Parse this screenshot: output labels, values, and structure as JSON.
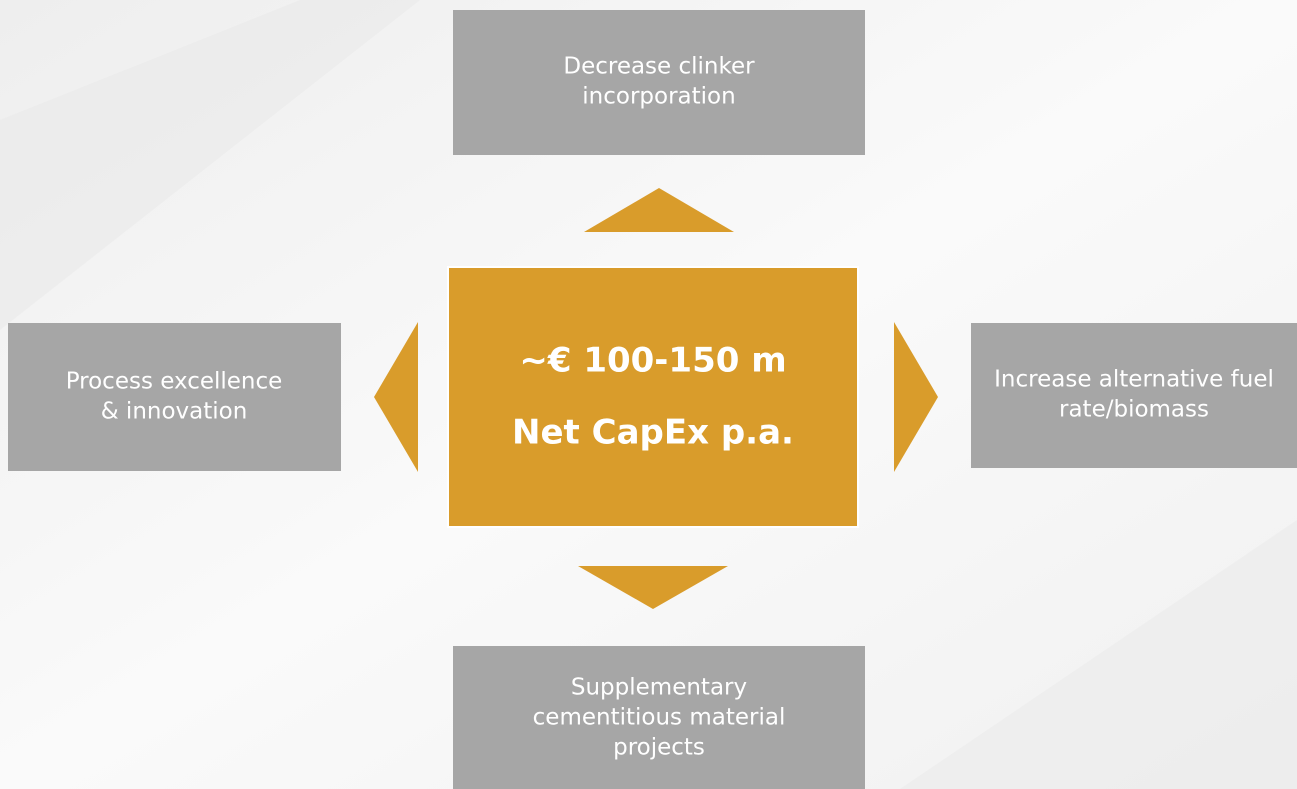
{
  "center": {
    "lines": [
      "~€ 100-150 m",
      "Net CapEx p.a."
    ]
  },
  "nodes": [
    {
      "position": "top",
      "lines": [
        "Decrease clinker",
        "incorporation"
      ]
    },
    {
      "position": "left",
      "lines": [
        "Process excellence",
        "& innovation"
      ]
    },
    {
      "position": "right",
      "lines": [
        "Increase alternative fuel",
        "rate/biomass"
      ]
    },
    {
      "position": "bottom",
      "lines": [
        "Supplementary",
        "cementitious material",
        "projects"
      ]
    }
  ]
}
